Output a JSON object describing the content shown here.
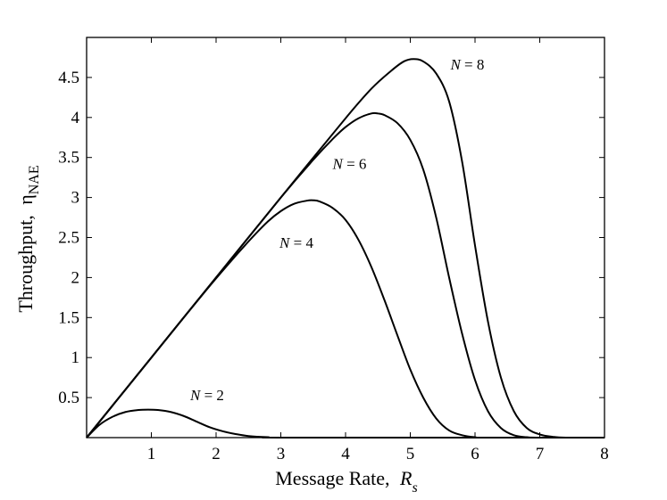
{
  "chart_data": {
    "type": "line",
    "xlabel": {
      "text": "Message Rate,",
      "var": "R",
      "sub": "s"
    },
    "ylabel": {
      "text": "Throughput,",
      "var": "η",
      "sub": "NAE"
    },
    "xlim": [
      0,
      8
    ],
    "ylim": [
      0,
      5
    ],
    "xticks": [
      1,
      2,
      3,
      4,
      5,
      6,
      7,
      8
    ],
    "yticks": [
      0.5,
      1,
      1.5,
      2,
      2.5,
      3,
      3.5,
      4,
      4.5
    ],
    "grid": false,
    "legend": "none",
    "series": [
      {
        "name": "N = 2",
        "label_var": "N",
        "label_rest": " = 2",
        "label_at": [
          1.6,
          0.47
        ],
        "points": [
          [
            0,
            0
          ],
          [
            0.2,
            0.16
          ],
          [
            0.4,
            0.26
          ],
          [
            0.6,
            0.32
          ],
          [
            0.8,
            0.345
          ],
          [
            0.95,
            0.35
          ],
          [
            1.1,
            0.345
          ],
          [
            1.3,
            0.32
          ],
          [
            1.5,
            0.27
          ],
          [
            1.7,
            0.2
          ],
          [
            1.9,
            0.13
          ],
          [
            2.1,
            0.08
          ],
          [
            2.3,
            0.045
          ],
          [
            2.5,
            0.02
          ],
          [
            2.8,
            0.006
          ],
          [
            3.2,
            0
          ],
          [
            8,
            0
          ]
        ]
      },
      {
        "name": "N = 4",
        "label_var": "N",
        "label_rest": " = 4",
        "label_at": [
          2.98,
          2.37
        ],
        "points": [
          [
            0,
            0
          ],
          [
            0.5,
            0.5
          ],
          [
            1,
            1
          ],
          [
            1.5,
            1.5
          ],
          [
            2,
            1.99
          ],
          [
            2.5,
            2.45
          ],
          [
            2.8,
            2.7
          ],
          [
            3,
            2.83
          ],
          [
            3.2,
            2.92
          ],
          [
            3.4,
            2.96
          ],
          [
            3.5,
            2.965
          ],
          [
            3.6,
            2.95
          ],
          [
            3.8,
            2.87
          ],
          [
            4,
            2.72
          ],
          [
            4.2,
            2.47
          ],
          [
            4.4,
            2.13
          ],
          [
            4.6,
            1.72
          ],
          [
            4.8,
            1.28
          ],
          [
            5,
            0.85
          ],
          [
            5.2,
            0.5
          ],
          [
            5.4,
            0.24
          ],
          [
            5.6,
            0.09
          ],
          [
            5.8,
            0.03
          ],
          [
            6,
            0.005
          ],
          [
            6.2,
            0
          ],
          [
            8,
            0
          ]
        ]
      },
      {
        "name": "N = 6",
        "label_var": "N",
        "label_rest": " = 6",
        "label_at": [
          3.8,
          3.36
        ],
        "points": [
          [
            0,
            0
          ],
          [
            1,
            1
          ],
          [
            2,
            2
          ],
          [
            3,
            3
          ],
          [
            3.5,
            3.47
          ],
          [
            3.8,
            3.73
          ],
          [
            4,
            3.88
          ],
          [
            4.2,
            3.99
          ],
          [
            4.4,
            4.05
          ],
          [
            4.5,
            4.05
          ],
          [
            4.6,
            4.03
          ],
          [
            4.8,
            3.93
          ],
          [
            5,
            3.72
          ],
          [
            5.2,
            3.35
          ],
          [
            5.4,
            2.75
          ],
          [
            5.6,
            2.0
          ],
          [
            5.8,
            1.3
          ],
          [
            6,
            0.72
          ],
          [
            6.2,
            0.33
          ],
          [
            6.4,
            0.12
          ],
          [
            6.6,
            0.03
          ],
          [
            6.8,
            0.005
          ],
          [
            7,
            0
          ],
          [
            8,
            0
          ]
        ]
      },
      {
        "name": "N = 8",
        "label_var": "N",
        "label_rest": " = 8",
        "label_at": [
          5.62,
          4.6
        ],
        "points": [
          [
            0,
            0
          ],
          [
            1,
            1
          ],
          [
            2,
            2
          ],
          [
            3,
            3
          ],
          [
            4,
            3.99
          ],
          [
            4.4,
            4.36
          ],
          [
            4.7,
            4.58
          ],
          [
            4.9,
            4.7
          ],
          [
            5.05,
            4.73
          ],
          [
            5.2,
            4.7
          ],
          [
            5.4,
            4.55
          ],
          [
            5.6,
            4.2
          ],
          [
            5.8,
            3.45
          ],
          [
            6,
            2.4
          ],
          [
            6.2,
            1.45
          ],
          [
            6.4,
            0.75
          ],
          [
            6.6,
            0.33
          ],
          [
            6.8,
            0.12
          ],
          [
            7,
            0.04
          ],
          [
            7.2,
            0.01
          ],
          [
            7.4,
            0
          ],
          [
            8,
            0
          ]
        ]
      }
    ]
  }
}
